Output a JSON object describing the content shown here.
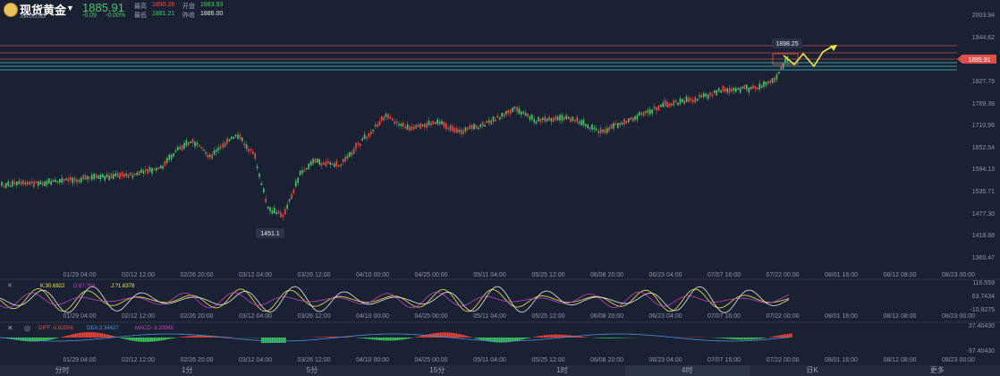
{
  "header": {
    "name": "现货黄金",
    "symbol": "XAUUSD",
    "price": "1885.91",
    "change": "-0.09",
    "change_pct": "-0.00%",
    "high_label": "最高",
    "high": "1890.28",
    "open_label": "开盘",
    "open": "1883.93",
    "low_label": "最低",
    "low": "1881.21",
    "prev_label": "昨收",
    "prev": "1886.00"
  },
  "price_axis": [
    "2003.94",
    "1944.62",
    "1885.91",
    "1827.79",
    "1769.38",
    "1710.96",
    "1652.54",
    "1594.13",
    "1535.71",
    "1477.30",
    "1418.88",
    "1360.47"
  ],
  "date_axis": [
    "01/29 04:00",
    "02/12 12:00",
    "02/26 20:00",
    "03/12 04:00",
    "03/26 12:00",
    "04/10 00:00",
    "04/25 00:00",
    "05/11 04:00",
    "05/25 12:00",
    "06/08 20:00",
    "06/23 04:00",
    "07/07 16:00",
    "07/22 00:00",
    "08/01 16:00",
    "08/12 08:00",
    "08/23 00:00"
  ],
  "annotations": {
    "high_label": "1898.25",
    "low_label": "1451.1",
    "current_tag": "1885.91"
  },
  "kdj": {
    "k": "K:30.6922",
    "d": "D:6?.?94",
    "j": "J:?1.6378",
    "axis": [
      "116.559",
      "63.7434",
      "-10.9275"
    ]
  },
  "macd": {
    "diff": "DIFF:-0.82556",
    "dea": "DEA:3.34427",
    "macd": "MACD:-8.33965",
    "axis": [
      "37.40430",
      "-37.40430"
    ]
  },
  "tabs": [
    "分时",
    "1分",
    "5分",
    "15分",
    "1时",
    "4时",
    "日K",
    "更多"
  ],
  "colors": {
    "up": "#e0504a",
    "down": "#4cc66c",
    "bg": "#1a2132",
    "kline": "#f0e64a",
    "dline": "#c040c0"
  }
}
